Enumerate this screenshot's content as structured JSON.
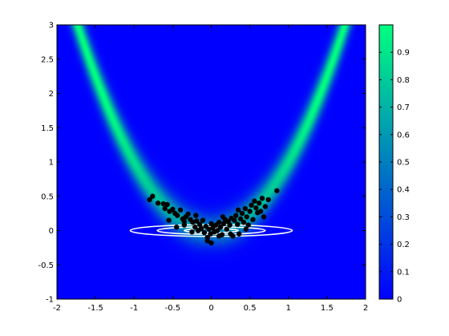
{
  "chart_data": {
    "type": "heatmap",
    "title": "",
    "xlabel": "",
    "ylabel": "",
    "xlim": [
      -2,
      2
    ],
    "ylim": [
      -1,
      3
    ],
    "x_ticks": [
      "-2",
      "-1.5",
      "-1",
      "-0.5",
      "0",
      "0.5",
      "1",
      "1.5",
      "2"
    ],
    "y_ticks": [
      "-1",
      "-0.5",
      "0",
      "0.5",
      "1",
      "1.5",
      "2",
      "2.5",
      "3"
    ],
    "heatmap_description": "density concentrated along the curve y = x^2 (banana shape)",
    "colormap": [
      "#0000ff",
      "#00ff80"
    ],
    "colorbar": {
      "range": [
        0,
        1
      ],
      "ticks": [
        "0",
        "0.1",
        "0.2",
        "0.3",
        "0.4",
        "0.5",
        "0.6",
        "0.7",
        "0.8",
        "0.9"
      ]
    },
    "contours": {
      "color": "#ffffff",
      "center": [
        0,
        0
      ],
      "levels": [
        {
          "rx": 1.05,
          "ry": 0.085
        },
        {
          "rx": 0.7,
          "ry": 0.055
        },
        {
          "rx": 0.35,
          "ry": 0.03
        }
      ]
    },
    "scatter": {
      "color": "#000000",
      "points": [
        [
          -0.76,
          0.5
        ],
        [
          -0.69,
          0.4
        ],
        [
          -0.62,
          0.39
        ],
        [
          -0.57,
          0.38
        ],
        [
          -0.54,
          0.28
        ],
        [
          -0.5,
          0.31
        ],
        [
          -0.47,
          0.25
        ],
        [
          -0.44,
          0.22
        ],
        [
          -0.4,
          0.3
        ],
        [
          -0.37,
          0.17
        ],
        [
          -0.35,
          0.13
        ],
        [
          -0.33,
          0.2
        ],
        [
          -0.3,
          0.24
        ],
        [
          -0.27,
          0.16
        ],
        [
          -0.24,
          0.12
        ],
        [
          -0.21,
          0.05
        ],
        [
          -0.19,
          0.14
        ],
        [
          -0.17,
          0.0
        ],
        [
          -0.15,
          0.09
        ],
        [
          -0.13,
          0.03
        ],
        [
          -0.11,
          0.15
        ],
        [
          -0.09,
          -0.03
        ],
        [
          -0.07,
          0.06
        ],
        [
          -0.05,
          -0.1
        ],
        [
          -0.03,
          0.02
        ],
        [
          -0.01,
          -0.05
        ],
        [
          0.0,
          0.1
        ],
        [
          0.02,
          0.04
        ],
        [
          0.04,
          -0.02
        ],
        [
          0.06,
          0.08
        ],
        [
          0.08,
          0.0
        ],
        [
          0.1,
          0.12
        ],
        [
          0.12,
          0.05
        ],
        [
          0.14,
          -0.06
        ],
        [
          0.16,
          0.1
        ],
        [
          0.18,
          0.16
        ],
        [
          0.2,
          0.02
        ],
        [
          0.22,
          0.13
        ],
        [
          0.24,
          0.08
        ],
        [
          0.26,
          0.18
        ],
        [
          0.28,
          -0.08
        ],
        [
          0.3,
          0.15
        ],
        [
          0.32,
          0.22
        ],
        [
          0.34,
          0.09
        ],
        [
          0.36,
          -0.05
        ],
        [
          0.38,
          0.17
        ],
        [
          0.4,
          0.25
        ],
        [
          0.42,
          0.12
        ],
        [
          0.44,
          0.32
        ],
        [
          0.46,
          0.2
        ],
        [
          0.48,
          0.08
        ],
        [
          0.5,
          0.28
        ],
        [
          0.52,
          0.37
        ],
        [
          0.54,
          0.16
        ],
        [
          0.56,
          0.43
        ],
        [
          0.58,
          0.33
        ],
        [
          0.6,
          0.26
        ],
        [
          0.62,
          0.4
        ],
        [
          0.64,
          0.28
        ],
        [
          0.66,
          0.47
        ],
        [
          0.68,
          0.2
        ],
        [
          0.7,
          0.35
        ],
        [
          0.74,
          0.45
        ],
        [
          0.85,
          0.58
        ],
        [
          -0.45,
          0.05
        ],
        [
          -0.35,
          0.08
        ],
        [
          -0.25,
          -0.02
        ],
        [
          -0.6,
          0.32
        ],
        [
          -0.8,
          0.45
        ],
        [
          0.15,
          0.2
        ],
        [
          -0.05,
          -0.15
        ],
        [
          0.1,
          -0.08
        ],
        [
          0.25,
          -0.05
        ],
        [
          0.45,
          0.02
        ],
        [
          -0.55,
          0.15
        ],
        [
          0.0,
          -0.18
        ],
        [
          0.35,
          0.3
        ],
        [
          -0.2,
          0.22
        ]
      ]
    }
  }
}
